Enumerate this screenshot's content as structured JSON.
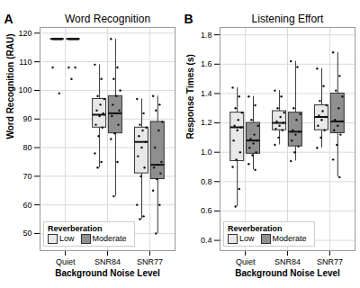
{
  "chart_data": [
    {
      "type": "box",
      "panel_label": "A",
      "title": "Word Recognition",
      "x_label": "Background Noise Level",
      "y_label": "Word Recognition (RAU)",
      "categories": [
        "Quiet",
        "SNR84",
        "SNR77"
      ],
      "ylim": [
        44,
        122
      ],
      "yticks": [
        50,
        60,
        70,
        80,
        90,
        100,
        110,
        120
      ],
      "grid": true,
      "legend": "bottom-left",
      "legend_title": "Reverberation",
      "series": [
        {
          "name": "Low",
          "color": "#e8e8e8",
          "boxes": [
            {
              "whisker_low": 118,
              "q1": 118,
              "median": 118,
              "q3": 118,
              "whisker_high": 118
            },
            {
              "whisker_low": 73,
              "q1": 87,
              "median": 91.5,
              "q3": 97,
              "whisker_high": 109
            },
            {
              "whisker_low": 55,
              "q1": 71,
              "median": 82,
              "q3": 87,
              "whisker_high": 97
            }
          ],
          "points": [
            [
              118,
              118,
              118,
              118,
              118,
              118,
              118,
              118,
              118,
              118,
              118,
              108,
              99
            ],
            [
              109,
              104,
              98,
              97,
              95,
              93,
              92,
              91,
              88,
              87,
              84,
              78,
              75,
              73
            ],
            [
              97,
              92,
              88,
              87,
              86,
              84,
              82,
              80,
              77,
              73,
              70,
              60,
              56,
              55
            ]
          ]
        },
        {
          "name": "Moderate",
          "color": "#8f8f8f",
          "boxes": [
            {
              "whisker_low": 118,
              "q1": 118,
              "median": 118,
              "q3": 118,
              "whisker_high": 118
            },
            {
              "whisker_low": 63,
              "q1": 85,
              "median": 92,
              "q3": 98,
              "whisker_high": 118
            },
            {
              "whisker_low": 50,
              "q1": 69,
              "median": 74,
              "q3": 89,
              "whisker_high": 98
            }
          ],
          "points": [
            [
              118,
              118,
              118,
              118,
              118,
              118,
              118,
              118,
              118,
              118,
              118,
              108,
              108,
              104
            ],
            [
              118,
              108,
              104,
              100,
              98,
              95,
              93,
              92,
              91,
              88,
              85,
              83,
              75,
              63
            ],
            [
              98,
              95,
              93,
              89,
              86,
              80,
              75,
              74,
              73,
              71,
              69,
              65,
              60,
              50
            ]
          ]
        }
      ]
    },
    {
      "type": "box",
      "panel_label": "B",
      "title": "Listening Effort",
      "x_label": "Background Noise Level",
      "y_label": "Response Times (s)",
      "categories": [
        "Quiet",
        "SNR84",
        "SNR77"
      ],
      "ylim": [
        0.33,
        1.85
      ],
      "yticks": [
        0.4,
        0.6,
        0.8,
        {
          "value": 1,
          "label": "1.0"
        },
        1.2,
        1.4,
        1.6,
        1.8
      ],
      "grid": true,
      "legend": "bottom-left",
      "legend_title": "Reverberation",
      "series": [
        {
          "name": "Low",
          "color": "#e8e8e8",
          "boxes": [
            {
              "whisker_low": 0.63,
              "q1": 0.94,
              "median": 1.17,
              "q3": 1.27,
              "whisker_high": 1.44
            },
            {
              "whisker_low": 1.05,
              "q1": 1.15,
              "median": 1.2,
              "q3": 1.28,
              "whisker_high": 1.42
            },
            {
              "whisker_low": 1.03,
              "q1": 1.15,
              "median": 1.24,
              "q3": 1.32,
              "whisker_high": 1.57
            }
          ],
          "points": [
            [
              1.44,
              1.38,
              1.3,
              1.27,
              1.22,
              1.18,
              1.17,
              1.15,
              1.08,
              1.0,
              0.95,
              0.9,
              0.75,
              0.63
            ],
            [
              1.42,
              1.38,
              1.3,
              1.27,
              1.24,
              1.21,
              1.2,
              1.18,
              1.16,
              1.15,
              1.1,
              1.05
            ],
            [
              1.57,
              1.45,
              1.35,
              1.32,
              1.28,
              1.25,
              1.24,
              1.22,
              1.18,
              1.15,
              1.1,
              1.03
            ]
          ]
        },
        {
          "name": "Moderate",
          "color": "#8f8f8f",
          "boxes": [
            {
              "whisker_low": 0.88,
              "q1": 0.99,
              "median": 1.08,
              "q3": 1.2,
              "whisker_high": 1.38
            },
            {
              "whisker_low": 0.94,
              "q1": 1.04,
              "median": 1.14,
              "q3": 1.27,
              "whisker_high": 1.62
            },
            {
              "whisker_low": 0.83,
              "q1": 1.13,
              "median": 1.21,
              "q3": 1.4,
              "whisker_high": 1.68
            }
          ],
          "points": [
            [
              1.38,
              1.32,
              1.22,
              1.18,
              1.12,
              1.09,
              1.08,
              1.06,
              1.03,
              1.0,
              0.98,
              0.92,
              0.88
            ],
            [
              1.62,
              1.58,
              1.3,
              1.26,
              1.22,
              1.15,
              1.14,
              1.12,
              1.08,
              1.04,
              1.0,
              0.94
            ],
            [
              1.68,
              1.52,
              1.42,
              1.38,
              1.3,
              1.22,
              1.21,
              1.18,
              1.15,
              1.12,
              1.05,
              0.95,
              0.83
            ]
          ]
        }
      ]
    }
  ]
}
